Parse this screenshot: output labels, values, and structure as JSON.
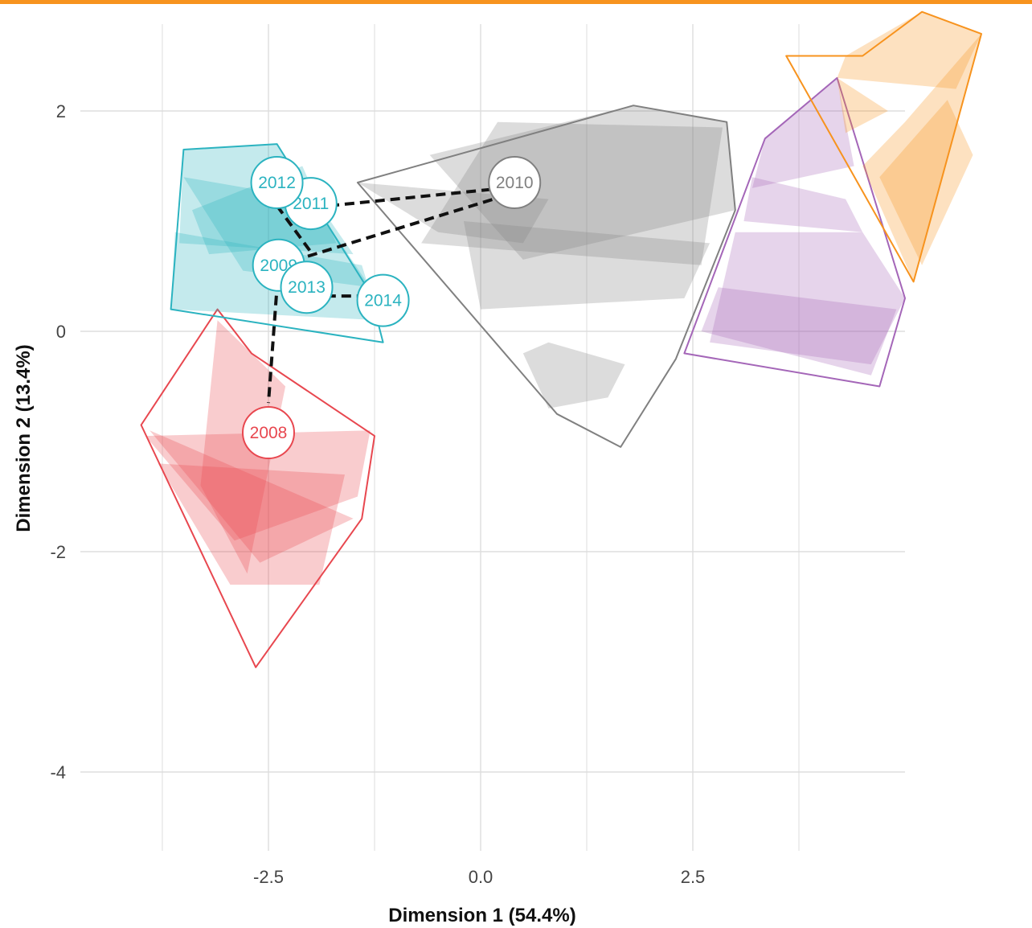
{
  "chart_data": {
    "type": "scatter",
    "xlabel": "Dimension 1 (54.4%)",
    "ylabel": "Dimension 2 (13.4%)",
    "xlim": [
      -4.5,
      3.8
    ],
    "ylim": [
      -4.7,
      2.5
    ],
    "x_ticks": [
      "-2.5",
      "0.0",
      "2.5"
    ],
    "x_tick_values": [
      -2.5,
      0.0,
      2.5
    ],
    "y_ticks": [
      "2",
      "0",
      "-2",
      "-4"
    ],
    "y_tick_values": [
      2,
      0,
      -2,
      -4
    ],
    "grid": true,
    "accent_color": "#f7931e",
    "groups": [
      {
        "id": "red",
        "color": "#e8474f",
        "hull": [
          [
            -4.0,
            -0.85
          ],
          [
            -3.1,
            0.2
          ],
          [
            -2.7,
            -0.2
          ],
          [
            -1.25,
            -0.95
          ],
          [
            -1.4,
            -1.7
          ],
          [
            -2.65,
            -3.05
          ],
          [
            -4.0,
            -0.85
          ]
        ],
        "fills": [
          [
            [
              -3.95,
              -0.95
            ],
            [
              -1.3,
              -0.9
            ],
            [
              -1.45,
              -1.5
            ],
            [
              -2.9,
              -1.9
            ]
          ],
          [
            [
              -3.1,
              0.1
            ],
            [
              -2.3,
              -0.5
            ],
            [
              -2.75,
              -2.2
            ],
            [
              -3.3,
              -1.4
            ]
          ],
          [
            [
              -3.8,
              -1.2
            ],
            [
              -1.6,
              -1.3
            ],
            [
              -1.9,
              -2.3
            ],
            [
              -2.95,
              -2.3
            ]
          ],
          [
            [
              -3.9,
              -0.9
            ],
            [
              -1.5,
              -1.7
            ],
            [
              -2.6,
              -2.1
            ]
          ]
        ]
      },
      {
        "id": "teal",
        "color": "#2bb3c0",
        "hull": [
          [
            -3.5,
            1.65
          ],
          [
            -2.4,
            1.7
          ],
          [
            -1.3,
            0.35
          ],
          [
            -1.15,
            -0.1
          ],
          [
            -3.65,
            0.2
          ],
          [
            -3.5,
            1.65
          ]
        ],
        "fills": [
          [
            [
              -3.5,
              1.65
            ],
            [
              -2.4,
              1.7
            ],
            [
              -1.5,
              0.7
            ],
            [
              -3.55,
              0.8
            ]
          ],
          [
            [
              -3.5,
              1.4
            ],
            [
              -2.0,
              1.2
            ],
            [
              -1.3,
              0.4
            ],
            [
              -2.8,
              0.55
            ]
          ],
          [
            [
              -3.6,
              0.9
            ],
            [
              -1.4,
              0.6
            ],
            [
              -1.2,
              0.1
            ],
            [
              -3.65,
              0.2
            ]
          ],
          [
            [
              -3.4,
              1.1
            ],
            [
              -2.1,
              1.5
            ],
            [
              -1.7,
              0.8
            ],
            [
              -3.2,
              0.7
            ]
          ]
        ]
      },
      {
        "id": "grey",
        "color": "#808080",
        "hull": [
          [
            -1.45,
            1.35
          ],
          [
            1.8,
            2.05
          ],
          [
            2.9,
            1.9
          ],
          [
            3.0,
            1.1
          ],
          [
            2.3,
            -0.25
          ],
          [
            1.65,
            -1.05
          ],
          [
            0.9,
            -0.75
          ],
          [
            -1.45,
            1.35
          ]
        ],
        "fills": [
          [
            [
              -0.6,
              1.6
            ],
            [
              1.8,
              2.05
            ],
            [
              2.9,
              1.9
            ],
            [
              3.0,
              1.1
            ],
            [
              0.5,
              0.65
            ]
          ],
          [
            [
              0.2,
              1.9
            ],
            [
              2.85,
              1.85
            ],
            [
              2.6,
              0.6
            ],
            [
              -0.7,
              0.8
            ]
          ],
          [
            [
              -0.2,
              1.0
            ],
            [
              2.7,
              0.8
            ],
            [
              2.4,
              0.3
            ],
            [
              0.0,
              0.2
            ]
          ],
          [
            [
              0.8,
              -0.1
            ],
            [
              1.7,
              -0.3
            ],
            [
              1.5,
              -0.6
            ],
            [
              0.8,
              -0.7
            ],
            [
              0.5,
              -0.2
            ]
          ],
          [
            [
              -1.45,
              1.35
            ],
            [
              0.8,
              1.2
            ],
            [
              0.5,
              0.8
            ],
            [
              -0.5,
              0.9
            ]
          ]
        ]
      },
      {
        "id": "purple",
        "color": "#a466b8",
        "hull": [
          [
            3.35,
            1.75
          ],
          [
            4.2,
            2.3
          ],
          [
            5.0,
            0.3
          ],
          [
            4.7,
            -0.5
          ],
          [
            2.4,
            -0.2
          ],
          [
            3.35,
            1.75
          ]
        ],
        "fills": [
          [
            [
              3.35,
              1.75
            ],
            [
              4.2,
              2.3
            ],
            [
              4.4,
              1.5
            ],
            [
              3.2,
              1.3
            ]
          ],
          [
            [
              3.0,
              0.9
            ],
            [
              4.5,
              0.9
            ],
            [
              5.0,
              0.3
            ],
            [
              4.6,
              -0.3
            ],
            [
              2.7,
              -0.1
            ]
          ],
          [
            [
              3.2,
              1.4
            ],
            [
              4.3,
              1.2
            ],
            [
              4.5,
              0.9
            ],
            [
              3.1,
              1.0
            ]
          ],
          [
            [
              2.8,
              0.4
            ],
            [
              4.9,
              0.2
            ],
            [
              4.6,
              -0.4
            ],
            [
              2.6,
              0.0
            ]
          ]
        ]
      },
      {
        "id": "orange",
        "color": "#f7931e",
        "hull": [
          [
            4.5,
            2.5
          ],
          [
            5.2,
            2.9
          ],
          [
            5.9,
            2.7
          ],
          [
            5.1,
            0.45
          ],
          [
            3.6,
            2.5
          ]
        ],
        "fills": [
          [
            [
              4.3,
              2.5
            ],
            [
              5.2,
              2.9
            ],
            [
              5.9,
              2.7
            ],
            [
              5.6,
              2.2
            ],
            [
              4.2,
              2.3
            ]
          ],
          [
            [
              5.0,
              1.9
            ],
            [
              5.9,
              2.7
            ],
            [
              5.1,
              0.45
            ],
            [
              4.5,
              1.5
            ]
          ],
          [
            [
              4.2,
              2.3
            ],
            [
              4.8,
              2.0
            ],
            [
              4.3,
              1.8
            ]
          ],
          [
            [
              5.5,
              2.1
            ],
            [
              5.8,
              1.6
            ],
            [
              5.2,
              0.6
            ],
            [
              4.7,
              1.4
            ]
          ]
        ]
      }
    ],
    "points": [
      {
        "label": "2008",
        "x": -2.5,
        "y": -0.92,
        "group": "red"
      },
      {
        "label": "2009",
        "x": -2.38,
        "y": 0.6,
        "group": "teal"
      },
      {
        "label": "2010",
        "x": 0.4,
        "y": 1.35,
        "group": "grey"
      },
      {
        "label": "2011",
        "x": -2.0,
        "y": 1.16,
        "group": "teal"
      },
      {
        "label": "2012",
        "x": -2.4,
        "y": 1.35,
        "group": "teal"
      },
      {
        "label": "2013",
        "x": -2.05,
        "y": 0.4,
        "group": "teal"
      },
      {
        "label": "2014",
        "x": -1.15,
        "y": 0.28,
        "group": "teal"
      }
    ],
    "links": [
      [
        [
          -2.38,
          0.6
        ],
        [
          -2.5,
          -0.65
        ]
      ],
      [
        [
          -2.38,
          0.6
        ],
        [
          0.28,
          1.23
        ]
      ],
      [
        [
          -1.78,
          1.14
        ],
        [
          0.28,
          1.3
        ]
      ],
      [
        [
          -2.22,
          1.3
        ],
        [
          -2.08,
          1.26
        ]
      ],
      [
        [
          -2.4,
          1.14
        ],
        [
          -2.0,
          0.72
        ]
      ],
      [
        [
          -1.82,
          0.32
        ],
        [
          -1.35,
          0.32
        ]
      ]
    ]
  }
}
